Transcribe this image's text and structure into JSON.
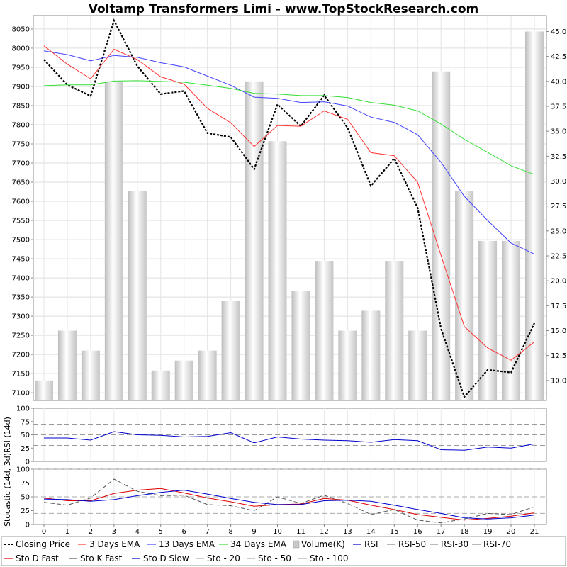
{
  "chart_data": {
    "type": "line",
    "title": "Voltamp Transformers Limi - www.TopStockResearch.com",
    "x": [
      0,
      1,
      2,
      3,
      4,
      5,
      6,
      7,
      8,
      9,
      10,
      11,
      12,
      13,
      14,
      15,
      16,
      17,
      18,
      19,
      20,
      21
    ],
    "price_panel": {
      "yticks": [
        7100,
        7150,
        7200,
        7250,
        7300,
        7350,
        7400,
        7450,
        7500,
        7550,
        7600,
        7650,
        7700,
        7750,
        7800,
        7850,
        7900,
        7950,
        8000,
        8050
      ],
      "ylim": [
        7080,
        8085
      ],
      "volume_ticks": [
        "10.0",
        "12.5",
        "15.0",
        "17.5",
        "20.0",
        "22.5",
        "25.0",
        "27.5",
        "30.0",
        "32.5",
        "35.0",
        "37.5",
        "40.0",
        "42.5",
        "45.0"
      ],
      "volume_ylim": [
        8.0,
        46.6
      ],
      "series": [
        {
          "name": "Closing Price",
          "color": "#000000",
          "dash": "3,2",
          "width": 2.2,
          "values": [
            7970,
            7904,
            7875,
            8072,
            7953,
            7880,
            7888,
            7778,
            7768,
            7684,
            7853,
            7796,
            7877,
            7792,
            7640,
            7712,
            7583,
            7268,
            7089,
            7160,
            7153,
            7282
          ]
        },
        {
          "name": "3 Days EMA",
          "color": "#ff3333",
          "dash": "",
          "width": 1,
          "values": [
            8006,
            7958,
            7920,
            7997,
            7970,
            7925,
            7906,
            7843,
            7805,
            7743,
            7798,
            7796,
            7836,
            7814,
            7727,
            7719,
            7650,
            7459,
            7273,
            7217,
            7185,
            7233
          ]
        },
        {
          "name": "13 Days EMA",
          "color": "#4444ff",
          "dash": "",
          "width": 1,
          "values": [
            7993,
            7983,
            7967,
            7981,
            7976,
            7962,
            7951,
            7927,
            7903,
            7872,
            7869,
            7858,
            7860,
            7849,
            7820,
            7806,
            7774,
            7702,
            7613,
            7550,
            7491,
            7462
          ]
        },
        {
          "name": "34 Days EMA",
          "color": "#33dd33",
          "dash": "",
          "width": 1,
          "values": [
            7902,
            7904,
            7904,
            7914,
            7915,
            7913,
            7911,
            7903,
            7895,
            7882,
            7880,
            7876,
            7876,
            7871,
            7858,
            7851,
            7836,
            7802,
            7762,
            7728,
            7693,
            7670
          ]
        }
      ],
      "volume": {
        "name": "Volume(K)",
        "values": [
          10.0,
          15.0,
          13.0,
          40.0,
          29.0,
          11.0,
          12.0,
          13.0,
          18.0,
          40.0,
          34.0,
          19.0,
          22.0,
          15.0,
          17.0,
          22.0,
          15.0,
          41.0,
          29.0,
          24.0,
          24.0,
          45.0
        ]
      }
    },
    "rsi_panel": {
      "ylabel": "RSI (14d)",
      "yticks": [
        0,
        25,
        50,
        75,
        100
      ],
      "ylim": [
        0,
        100
      ],
      "series": [
        {
          "name": "RSI",
          "color": "#0000cc",
          "values": [
            44,
            44,
            40,
            56,
            50,
            49,
            46,
            47,
            54,
            35,
            46,
            42,
            40,
            39,
            36,
            41,
            39,
            22,
            21,
            27,
            25,
            33
          ]
        }
      ],
      "ref_lines": [
        {
          "name": "RSI-50",
          "value": 50
        },
        {
          "name": "RSI-30",
          "value": 30
        },
        {
          "name": "RSI-70",
          "value": 70
        }
      ]
    },
    "stoch_panel": {
      "ylabel": "Stocastic (14d, 3d)",
      "yticks": [
        0,
        25,
        50,
        75,
        100
      ],
      "ylim": [
        0,
        100
      ],
      "series": [
        {
          "name": "Sto D Fast",
          "color": "#dd0000",
          "dash": "",
          "values": [
            48,
            43,
            43,
            56,
            62,
            65,
            57,
            48,
            41,
            33,
            36,
            37,
            47,
            44,
            35,
            27,
            18,
            13,
            8,
            11,
            15,
            21
          ]
        },
        {
          "name": "Sto K Fast",
          "color": "#555555",
          "dash": "6,3",
          "values": [
            40,
            35,
            48,
            82,
            60,
            52,
            53,
            36,
            34,
            25,
            50,
            38,
            53,
            38,
            18,
            27,
            8,
            3,
            10,
            20,
            18,
            32
          ]
        },
        {
          "name": "Sto D Slow",
          "color": "#0000cc",
          "dash": "",
          "values": [
            46,
            45,
            42,
            45,
            52,
            58,
            62,
            55,
            47,
            40,
            36,
            36,
            43,
            44,
            42,
            35,
            27,
            20,
            12,
            10,
            12,
            17
          ]
        }
      ],
      "ref_lines": [
        {
          "name": "Sto - 20",
          "value": 20
        },
        {
          "name": "Sto - 50",
          "value": 50
        },
        {
          "name": "Sto - 100",
          "value": 100
        }
      ]
    },
    "legend_rows": [
      [
        "Closing Price",
        "3 Days EMA",
        "13 Days EMA",
        "34 Days EMA",
        "Volume(K)",
        "RSI",
        "RSI-50",
        "RSI-30",
        "RSI-70"
      ],
      [
        "Sto D Fast",
        "Sto K Fast",
        "Sto D Slow",
        "Sto - 20",
        "Sto - 50",
        "Sto - 100"
      ]
    ],
    "legend_colors": {
      "Closing Price": "#000000",
      "3 Days EMA": "#ff3333",
      "13 Days EMA": "#4444ff",
      "34 Days EMA": "#33dd33",
      "Volume(K)": "#bbbbbb",
      "RSI": "#0000cc",
      "RSI-50": "#888888",
      "RSI-30": "#888888",
      "RSI-70": "#888888",
      "Sto D Fast": "#dd0000",
      "Sto K Fast": "#555555",
      "Sto D Slow": "#0000cc",
      "Sto - 20": "#aaaaaa",
      "Sto - 50": "#aaaaaa",
      "Sto - 100": "#aaaaaa"
    },
    "grid": true,
    "legend_position": "bottom"
  }
}
